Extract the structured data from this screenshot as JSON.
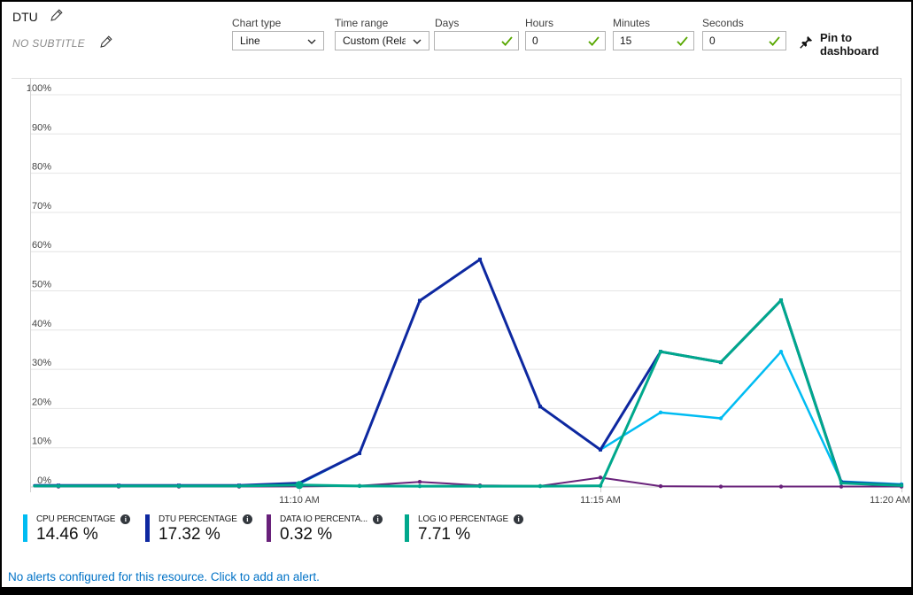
{
  "icons": {
    "info": "i"
  },
  "header": {
    "title": "DTU",
    "subtitle": "NO SUBTITLE",
    "pin_label": "Pin to dashboard",
    "controls": [
      {
        "label": "Chart type",
        "type": "select",
        "value": "Line"
      },
      {
        "label": "Time range",
        "type": "select",
        "value": "Custom (Rela..."
      },
      {
        "label": "Days",
        "type": "input",
        "value": "",
        "valid": true
      },
      {
        "label": "Hours",
        "type": "input",
        "value": "0",
        "valid": true
      },
      {
        "label": "Minutes",
        "type": "input",
        "value": "15",
        "valid": true
      },
      {
        "label": "Seconds",
        "type": "input",
        "value": "0",
        "valid": true
      }
    ]
  },
  "chart_data": {
    "type": "line",
    "title": "DTU",
    "x_axis": {
      "unit": "time",
      "window_minutes": 15,
      "ticks": [
        {
          "label": "11:10 AM",
          "minute": 10
        },
        {
          "label": "11:15 AM",
          "minute": 15
        },
        {
          "label": "11:20 AM",
          "minute": 20
        }
      ]
    },
    "y_axis": {
      "min": 0,
      "max": 100,
      "tick_step": 10,
      "tick_suffix": "%"
    },
    "minutes": [
      5.6,
      6,
      7,
      8,
      9,
      10,
      11,
      12,
      13,
      14,
      15,
      16,
      17,
      18,
      19,
      20
    ],
    "series": [
      {
        "name": "CPU PERCENTAGE",
        "color": "#00bcf2",
        "marker": "circle",
        "stroke_width": 2.5,
        "values": [
          0.3,
          0.3,
          0.3,
          0.3,
          0.3,
          0.8,
          8.6,
          47.5,
          58,
          20.5,
          9.5,
          19,
          17.5,
          34.5,
          1.4,
          0.7
        ],
        "average": "14.46 %"
      },
      {
        "name": "DATA IO PERCENTAGE",
        "color": "#68217a",
        "marker": "circle",
        "stroke_width": 2,
        "values": [
          0.1,
          0.1,
          0.1,
          0.1,
          0.1,
          0.15,
          0.3,
          1.3,
          0.4,
          0.25,
          2.4,
          0.2,
          0.1,
          0.1,
          0.1,
          0.1
        ],
        "average": "0.32 %"
      },
      {
        "name": "DTU PERCENTAGE",
        "color": "#0e28a0",
        "marker": "square",
        "stroke_width": 3,
        "values": [
          0.4,
          0.4,
          0.4,
          0.4,
          0.4,
          1,
          8.6,
          47.5,
          58,
          20.5,
          9.5,
          34.5,
          31.8,
          47.6,
          1.2,
          0.5
        ],
        "average": "17.32 %"
      },
      {
        "name": "LOG IO PERCENTAGE",
        "color": "#00a88c",
        "marker": "circle",
        "stroke_width": 3,
        "big_marker_minute": 10,
        "values": [
          0.25,
          0.25,
          0.25,
          0.25,
          0.25,
          0.5,
          0.25,
          0.2,
          0.2,
          0.2,
          0.3,
          34.5,
          31.8,
          47.6,
          1,
          0.4
        ],
        "average": "7.71 %"
      }
    ]
  },
  "legend": [
    {
      "label": "CPU PERCENTAGE",
      "value": "14.46 %",
      "color": "#00bcf2"
    },
    {
      "label": "DTU PERCENTAGE",
      "value": "17.32 %",
      "color": "#0e28a0"
    },
    {
      "label": "DATA IO PERCENTA...",
      "value": "0.32 %",
      "color": "#68217a"
    },
    {
      "label": "LOG IO PERCENTAGE",
      "value": "7.71 %",
      "color": "#00a88c"
    }
  ],
  "footer": {
    "alert_text": "No alerts configured for this resource. Click to add an alert."
  }
}
